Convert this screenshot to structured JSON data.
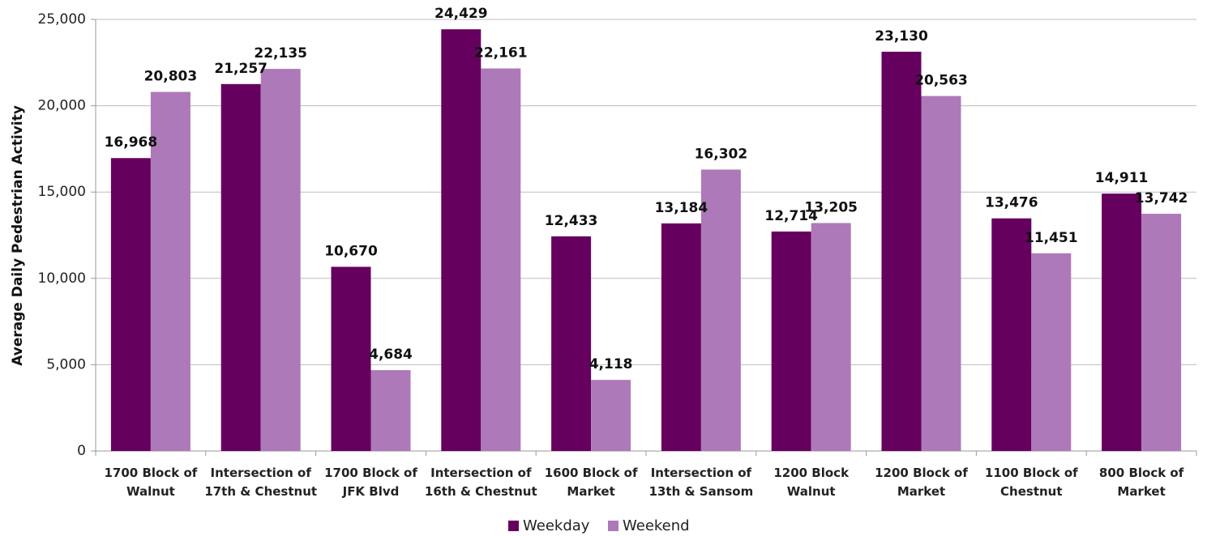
{
  "chart_data": {
    "type": "bar",
    "ylabel": "Average Daily Pedestrian Activity",
    "xlabel": "",
    "ylim": [
      0,
      25000
    ],
    "yticks": [
      0,
      5000,
      10000,
      15000,
      20000,
      25000
    ],
    "ytick_labels": [
      "0",
      "5,000",
      "10,000",
      "15,000",
      "20,000",
      "25,000"
    ],
    "grid": true,
    "legend_position": "bottom",
    "categories": [
      [
        "1700 Block of",
        "Walnut"
      ],
      [
        "Intersection of",
        "17th & Chestnut"
      ],
      [
        "1700 Block of",
        "JFK Blvd"
      ],
      [
        "Intersection of",
        "16th & Chestnut"
      ],
      [
        "1600 Block of",
        "Market"
      ],
      [
        "Intersection of",
        "13th & Sansom"
      ],
      [
        "1200 Block",
        "Walnut"
      ],
      [
        "1200 Block of",
        "Market"
      ],
      [
        "1100 Block of",
        "Chestnut"
      ],
      [
        "800 Block of",
        "Market"
      ]
    ],
    "series": [
      {
        "name": "Weekday",
        "color": "#66005f",
        "values": [
          16968,
          21257,
          10670,
          24429,
          12433,
          13184,
          12714,
          23130,
          13476,
          14911
        ],
        "labels": [
          "16,968",
          "21,257",
          "10,670",
          "24,429",
          "12,433",
          "13,184",
          "12,714",
          "23,130",
          "13,476",
          "14,911"
        ]
      },
      {
        "name": "Weekend",
        "color": "#ae79b8",
        "values": [
          20803,
          22135,
          4684,
          22161,
          4118,
          16302,
          13205,
          20563,
          11451,
          13742
        ],
        "labels": [
          "20,803",
          "22,135",
          "4,684",
          "22,161",
          "4,118",
          "16,302",
          "13,205",
          "20,563",
          "11,451",
          "13,742"
        ]
      }
    ]
  }
}
